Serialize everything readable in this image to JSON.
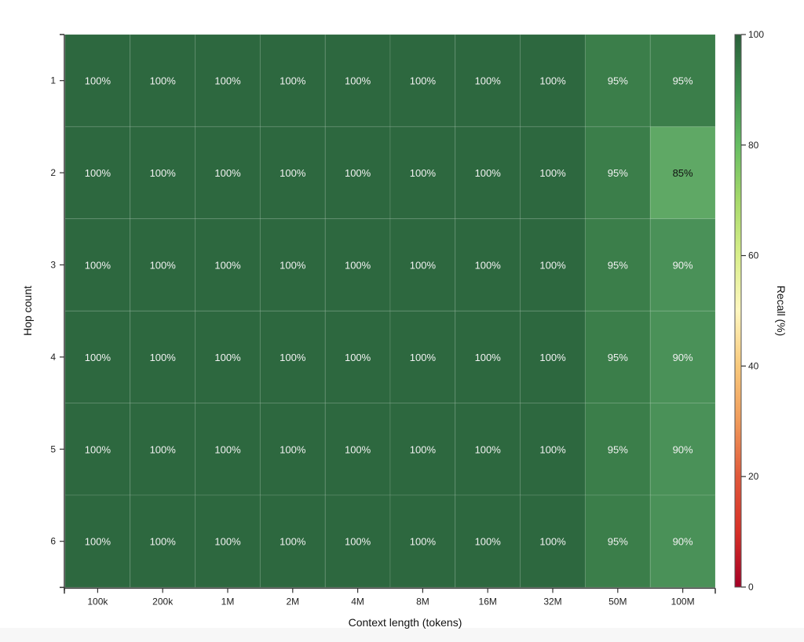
{
  "chart_data": {
    "type": "heatmap",
    "title": "",
    "xlabel": "Context length (tokens)",
    "ylabel": "Hop count",
    "categories_x": [
      "100k",
      "200k",
      "1M",
      "2M",
      "4M",
      "8M",
      "16M",
      "32M",
      "50M",
      "100M"
    ],
    "categories_y": [
      "1",
      "2",
      "3",
      "4",
      "5",
      "6"
    ],
    "values": [
      [
        100,
        100,
        100,
        100,
        100,
        100,
        100,
        100,
        95,
        95
      ],
      [
        100,
        100,
        100,
        100,
        100,
        100,
        100,
        100,
        95,
        85
      ],
      [
        100,
        100,
        100,
        100,
        100,
        100,
        100,
        100,
        95,
        90
      ],
      [
        100,
        100,
        100,
        100,
        100,
        100,
        100,
        100,
        95,
        90
      ],
      [
        100,
        100,
        100,
        100,
        100,
        100,
        100,
        100,
        95,
        90
      ],
      [
        100,
        100,
        100,
        100,
        100,
        100,
        100,
        100,
        95,
        90
      ]
    ],
    "value_format": "{v}%",
    "colorbar": {
      "label": "Recall (%)",
      "range": [
        0,
        100
      ],
      "ticks": [
        0,
        20,
        40,
        60,
        80,
        100
      ],
      "colormap": "RdYlGn"
    },
    "cell_colors": {
      "100": "#2d683f",
      "95": "#3b7e4a",
      "90": "#4a9158",
      "85": "#5fa865"
    },
    "grid": true
  }
}
